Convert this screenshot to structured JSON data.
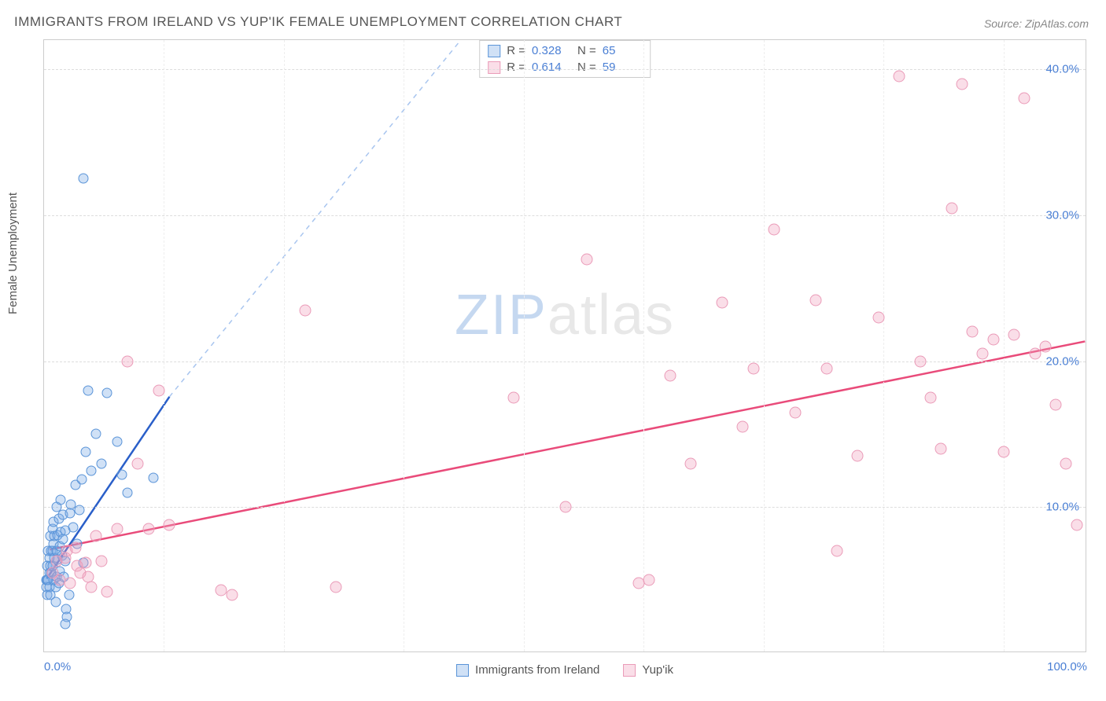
{
  "title": "IMMIGRANTS FROM IRELAND VS YUP'IK FEMALE UNEMPLOYMENT CORRELATION CHART",
  "source": "Source: ZipAtlas.com",
  "ylabel": "Female Unemployment",
  "watermark_zip": "ZIP",
  "watermark_atlas": "atlas",
  "chart": {
    "type": "scatter",
    "background_color": "#ffffff",
    "grid_color": "#dddddd",
    "xlim": [
      0,
      100
    ],
    "ylim": [
      0,
      42
    ],
    "ytick_step": 10,
    "ytick_labels": [
      "10.0%",
      "20.0%",
      "30.0%",
      "40.0%"
    ],
    "xtick_positions": [
      0,
      100
    ],
    "xtick_labels": [
      "0.0%",
      "100.0%"
    ],
    "xgrid_positions": [
      11.5,
      23,
      34.5,
      46,
      57.5,
      69,
      80.5,
      92
    ],
    "series": [
      {
        "name": "Immigrants from Ireland",
        "color_fill": "rgba(120,170,230,0.35)",
        "color_stroke": "#5a94d8",
        "marker_size": 13,
        "trend_color": "#2a5fc9",
        "trend_dash_color": "#a8c5ef",
        "trend": {
          "x1": 0.2,
          "y1": 5,
          "x2": 12,
          "y2": 17.5,
          "dash_x2": 40,
          "dash_y2": 47
        },
        "R": "0.328",
        "N": "65",
        "points": [
          [
            0.2,
            5
          ],
          [
            0.2,
            4.5
          ],
          [
            0.3,
            6
          ],
          [
            0.3,
            5
          ],
          [
            0.3,
            4
          ],
          [
            0.4,
            7
          ],
          [
            0.4,
            5
          ],
          [
            0.5,
            6.5
          ],
          [
            0.5,
            5.5
          ],
          [
            0.5,
            4.5
          ],
          [
            0.6,
            8
          ],
          [
            0.6,
            6
          ],
          [
            0.6,
            4
          ],
          [
            0.7,
            7
          ],
          [
            0.7,
            5.5
          ],
          [
            0.8,
            8.5
          ],
          [
            0.8,
            7
          ],
          [
            0.8,
            6
          ],
          [
            0.9,
            9
          ],
          [
            0.9,
            7.5
          ],
          [
            0.9,
            5
          ],
          [
            1.0,
            8
          ],
          [
            1.0,
            6.5
          ],
          [
            1.1,
            4.5
          ],
          [
            1.1,
            3.5
          ],
          [
            1.2,
            10
          ],
          [
            1.2,
            7
          ],
          [
            1.2,
            5.2
          ],
          [
            1.3,
            8.1
          ],
          [
            1.3,
            6.4
          ],
          [
            1.4,
            4.8
          ],
          [
            1.4,
            9.2
          ],
          [
            1.5,
            7.3
          ],
          [
            1.5,
            5.6
          ],
          [
            1.6,
            10.5
          ],
          [
            1.6,
            8.3
          ],
          [
            1.7,
            6.7
          ],
          [
            1.8,
            9.5
          ],
          [
            1.8,
            7.8
          ],
          [
            1.9,
            5.2
          ],
          [
            2.0,
            8.4
          ],
          [
            2.0,
            6.3
          ],
          [
            2.1,
            3.0
          ],
          [
            2.2,
            2.5
          ],
          [
            2.4,
            4.0
          ],
          [
            2.5,
            9.6
          ],
          [
            2.6,
            10.2
          ],
          [
            2.8,
            8.6
          ],
          [
            3.0,
            11.5
          ],
          [
            3.2,
            7.5
          ],
          [
            3.4,
            9.8
          ],
          [
            3.6,
            11.9
          ],
          [
            3.8,
            6.2
          ],
          [
            4.0,
            13.8
          ],
          [
            4.5,
            12.5
          ],
          [
            5.0,
            15.0
          ],
          [
            5.5,
            13.0
          ],
          [
            4.2,
            18.0
          ],
          [
            6.0,
            17.8
          ],
          [
            7.0,
            14.5
          ],
          [
            7.5,
            12.2
          ],
          [
            8.0,
            11.0
          ],
          [
            10.5,
            12.0
          ],
          [
            3.8,
            32.5
          ],
          [
            2.0,
            2.0
          ]
        ]
      },
      {
        "name": "Yup'ik",
        "color_fill": "rgba(240,160,190,0.35)",
        "color_stroke": "#ea9bb8",
        "marker_size": 15,
        "trend_color": "#e94b7a",
        "trend": {
          "x1": 0.5,
          "y1": 7,
          "x2": 100,
          "y2": 21.3
        },
        "R": "0.614",
        "N": "59",
        "points": [
          [
            1.5,
            5
          ],
          [
            2,
            6.5
          ],
          [
            2.5,
            4.8
          ],
          [
            3,
            7.2
          ],
          [
            3.5,
            5.5
          ],
          [
            4,
            6.2
          ],
          [
            4.5,
            4.5
          ],
          [
            5,
            8
          ],
          [
            5.5,
            6.3
          ],
          [
            6.0,
            4.2
          ],
          [
            7,
            8.5
          ],
          [
            8,
            20
          ],
          [
            9,
            13
          ],
          [
            10,
            8.5
          ],
          [
            11,
            18
          ],
          [
            12,
            8.8
          ],
          [
            17,
            4.3
          ],
          [
            18,
            4.0
          ],
          [
            25,
            23.5
          ],
          [
            28,
            4.5
          ],
          [
            45,
            17.5
          ],
          [
            50,
            10
          ],
          [
            52,
            27
          ],
          [
            57,
            4.8
          ],
          [
            58,
            5.0
          ],
          [
            60,
            19
          ],
          [
            62,
            13
          ],
          [
            65,
            24
          ],
          [
            67,
            15.5
          ],
          [
            68,
            19.5
          ],
          [
            70,
            29
          ],
          [
            72,
            16.5
          ],
          [
            74,
            24.2
          ],
          [
            75,
            19.5
          ],
          [
            76,
            7
          ],
          [
            78,
            13.5
          ],
          [
            80,
            23
          ],
          [
            82,
            39.5
          ],
          [
            84,
            20
          ],
          [
            85,
            17.5
          ],
          [
            86,
            14
          ],
          [
            87,
            30.5
          ],
          [
            88,
            39
          ],
          [
            89,
            22
          ],
          [
            90,
            20.5
          ],
          [
            91,
            21.5
          ],
          [
            92,
            13.8
          ],
          [
            93,
            21.8
          ],
          [
            94,
            38
          ],
          [
            95,
            20.5
          ],
          [
            96,
            21
          ],
          [
            97,
            17
          ],
          [
            98,
            13
          ],
          [
            99,
            8.8
          ],
          [
            0.8,
            5.5
          ],
          [
            1.2,
            6.3
          ],
          [
            2.2,
            7.0
          ],
          [
            3.2,
            6.0
          ],
          [
            4.2,
            5.2
          ]
        ]
      }
    ]
  },
  "stats_labels": {
    "R": "R =",
    "N": "N ="
  }
}
